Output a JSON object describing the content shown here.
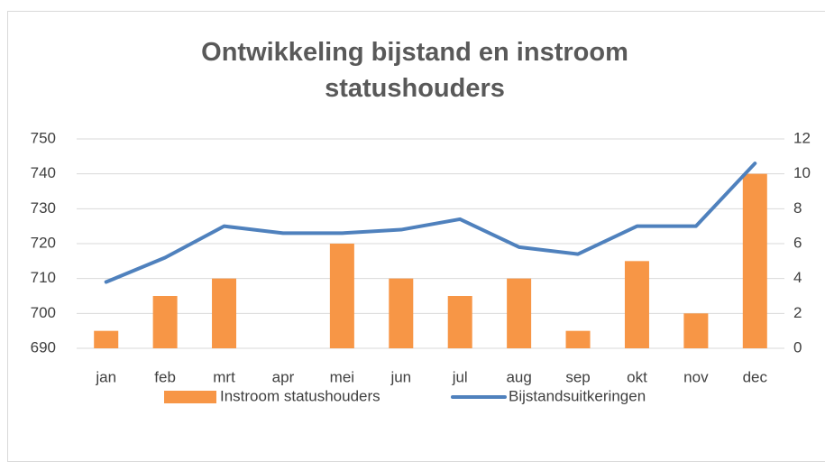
{
  "chart_data": {
    "type": "bar-line",
    "title": "Ontwikkeling bijstand en instroom statushouders",
    "categories": [
      "jan",
      "feb",
      "mrt",
      "apr",
      "mei",
      "jun",
      "jul",
      "aug",
      "sep",
      "okt",
      "nov",
      "dec"
    ],
    "series": [
      {
        "name": "Instroom statushouders",
        "type": "bar",
        "axis": "y2",
        "color": "#f79646",
        "values": [
          1,
          3,
          4,
          0,
          6,
          4,
          3,
          4,
          1,
          5,
          2,
          10
        ]
      },
      {
        "name": "Bijstandsuitkeringen",
        "type": "line",
        "color": "#4f81bd",
        "values": [
          709,
          716,
          725,
          723,
          723,
          724,
          727,
          719,
          717,
          725,
          725,
          743
        ]
      }
    ],
    "ylim": [
      690,
      750
    ],
    "yticks": [
      690,
      700,
      710,
      720,
      730,
      740,
      750
    ],
    "y2lim": [
      0,
      12
    ],
    "y2ticks": [
      0,
      2,
      4,
      6,
      8,
      10,
      12
    ],
    "grid": true,
    "legend": "bottom"
  }
}
